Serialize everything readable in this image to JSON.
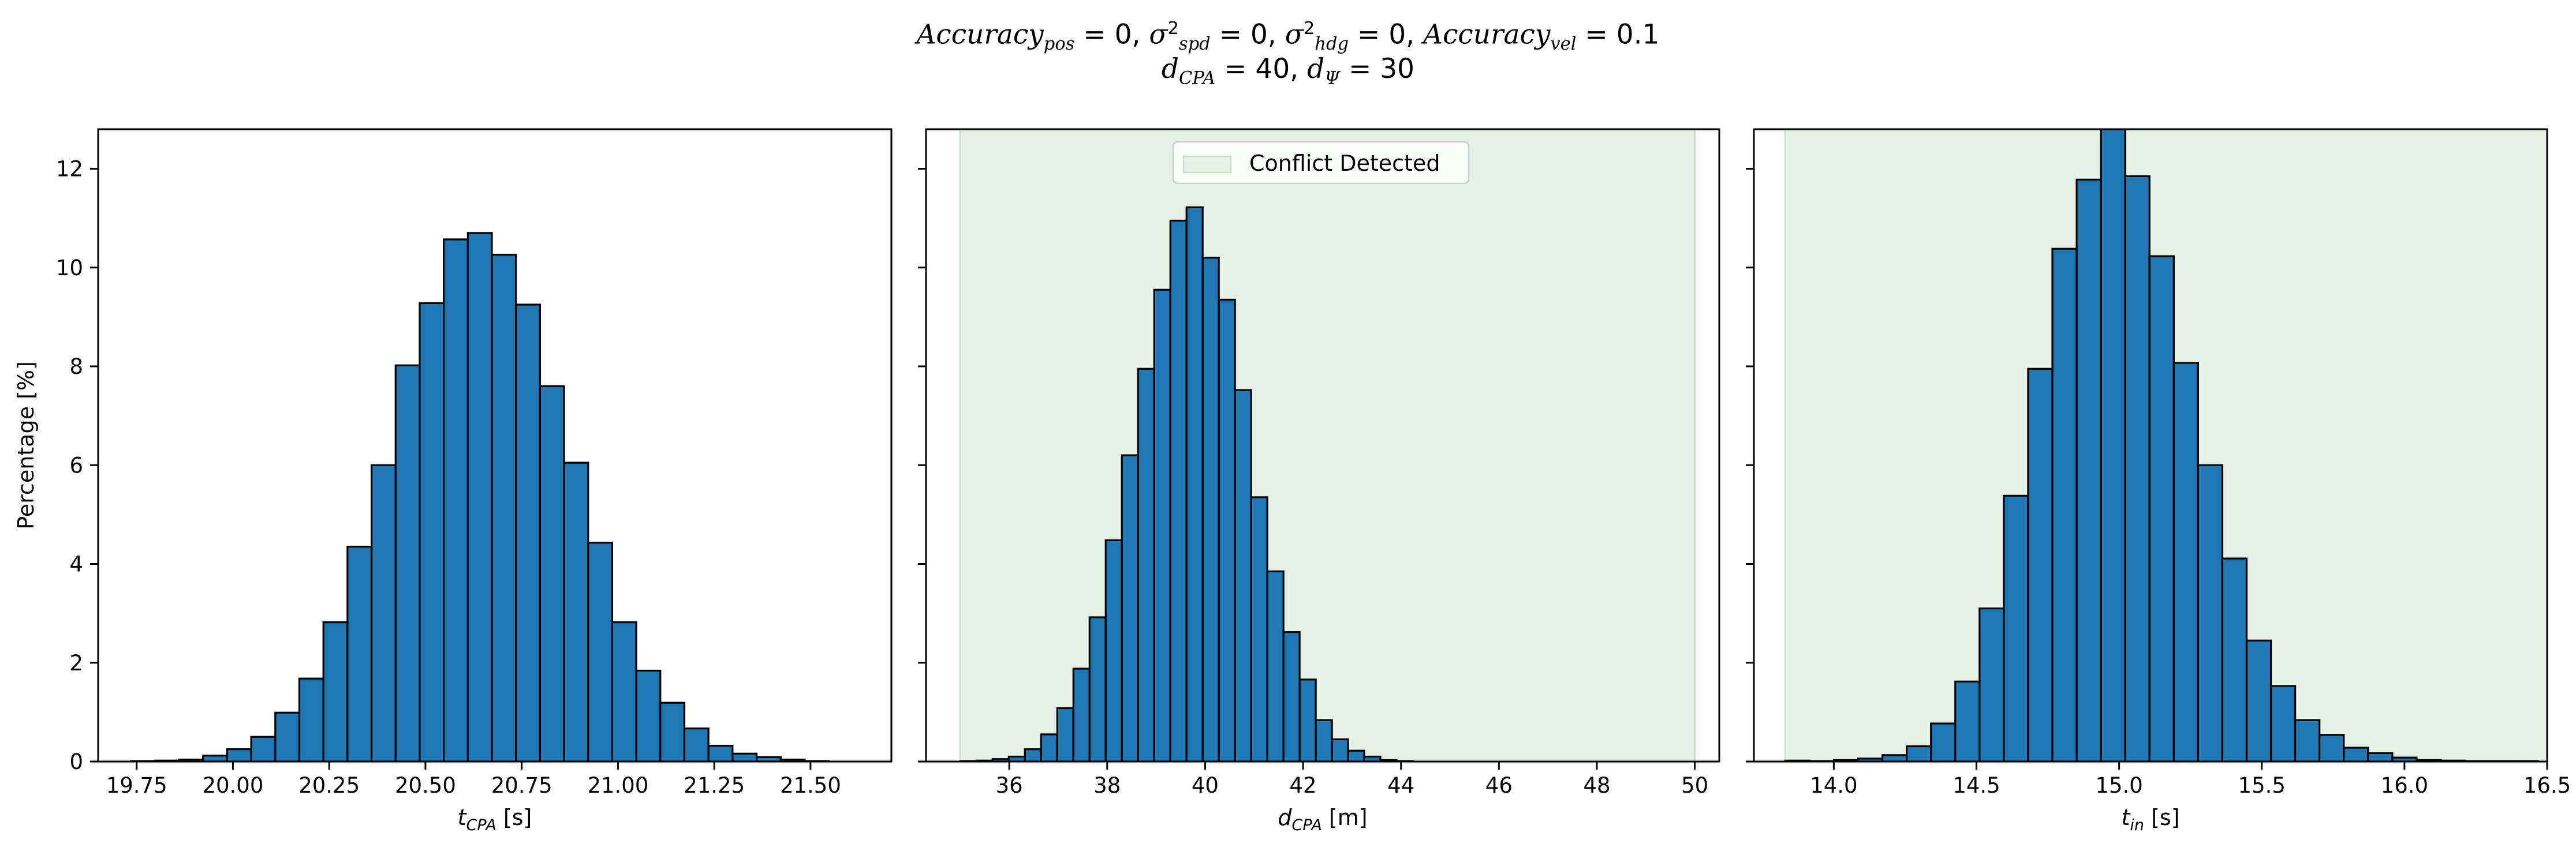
{
  "figure": {
    "title_line1": "Accuracy_pos = 0, σ²_spd = 0, σ²_hdg = 0, Accuracy_vel = 0.1",
    "title_line2": "d_CPA = 40, d_Ψ = 30"
  },
  "colors": {
    "bar_fill": "#1f77b4",
    "bar_edge": "#000000",
    "conflict_span": "#e5f1e5",
    "conflict_span_edge": "#c9dfc9"
  },
  "chart_data": [
    {
      "type": "bar",
      "subtype": "histogram",
      "title": "",
      "xlabel": "t_CPA [s]",
      "ylabel": "Percentage [%]",
      "xlim": [
        19.65,
        21.71
      ],
      "ylim": [
        0,
        12.8
      ],
      "xticks": [
        19.75,
        20.0,
        20.25,
        20.5,
        20.75,
        21.0,
        21.25,
        21.5
      ],
      "xtick_labels": [
        "19.75",
        "20.00",
        "20.25",
        "20.50",
        "20.75",
        "21.00",
        "21.25",
        "21.50"
      ],
      "yticks": [
        0,
        2,
        4,
        6,
        8,
        10,
        12
      ],
      "ytick_labels": [
        "0",
        "2",
        "4",
        "6",
        "8",
        "10",
        "12"
      ],
      "bin_start": 19.735,
      "bin_width": 0.0625,
      "values": [
        0.01,
        0.02,
        0.04,
        0.12,
        0.25,
        0.5,
        0.99,
        1.68,
        2.82,
        4.35,
        6.0,
        8.02,
        9.28,
        10.57,
        10.7,
        10.26,
        9.25,
        7.6,
        6.05,
        4.43,
        2.82,
        1.84,
        1.19,
        0.67,
        0.32,
        0.16,
        0.09,
        0.04,
        0.01
      ]
    },
    {
      "type": "bar",
      "subtype": "histogram",
      "title": "",
      "xlabel": "d_CPA [m]",
      "ylabel": "",
      "xlim": [
        34.3,
        50.5
      ],
      "ylim": [
        0,
        12.8
      ],
      "xticks": [
        36,
        38,
        40,
        42,
        44,
        46,
        48,
        50
      ],
      "xtick_labels": [
        "36",
        "38",
        "40",
        "42",
        "44",
        "46",
        "48",
        "50"
      ],
      "yticks": [
        0,
        2,
        4,
        6,
        8,
        10,
        12
      ],
      "ytick_labels": [
        "",
        "",
        "",
        "",
        "",
        "",
        ""
      ],
      "bin_start": 35.0,
      "bin_width": 0.33,
      "values": [
        0.01,
        0.02,
        0.05,
        0.1,
        0.25,
        0.55,
        1.08,
        1.88,
        2.92,
        4.48,
        6.2,
        7.95,
        9.55,
        10.95,
        11.22,
        10.2,
        9.35,
        7.52,
        5.35,
        3.85,
        2.62,
        1.66,
        0.84,
        0.45,
        0.22,
        0.1,
        0.03,
        0.01
      ],
      "span": {
        "label": "Conflict Detected",
        "from": 35.0,
        "to": 50.0
      },
      "legend": {
        "entries": [
          "Conflict Detected"
        ],
        "placement": "upper center"
      }
    },
    {
      "type": "bar",
      "subtype": "histogram",
      "title": "",
      "xlabel": "t_in [s]",
      "ylabel": "",
      "xlim": [
        13.72,
        16.5
      ],
      "ylim": [
        0,
        12.8
      ],
      "xticks": [
        14.0,
        14.5,
        15.0,
        15.5,
        16.0,
        16.5
      ],
      "xtick_labels": [
        "14.0",
        "14.5",
        "15.0",
        "15.5",
        "16.0",
        "16.5"
      ],
      "yticks": [
        0,
        2,
        4,
        6,
        8,
        10,
        12
      ],
      "ytick_labels": [
        "",
        "",
        "",
        "",
        "",
        "",
        ""
      ],
      "bin_start": 13.83,
      "bin_width": 0.0851,
      "values": [
        0.02,
        0.01,
        0.03,
        0.06,
        0.13,
        0.31,
        0.77,
        1.62,
        3.1,
        5.38,
        7.95,
        10.38,
        11.78,
        12.95,
        11.85,
        10.23,
        8.07,
        6.0,
        4.11,
        2.45,
        1.53,
        0.84,
        0.54,
        0.28,
        0.17,
        0.08,
        0.03,
        0.02,
        0.01,
        0.01,
        0.01
      ],
      "span": {
        "label": "",
        "from": 13.83,
        "to": 16.5
      }
    }
  ]
}
